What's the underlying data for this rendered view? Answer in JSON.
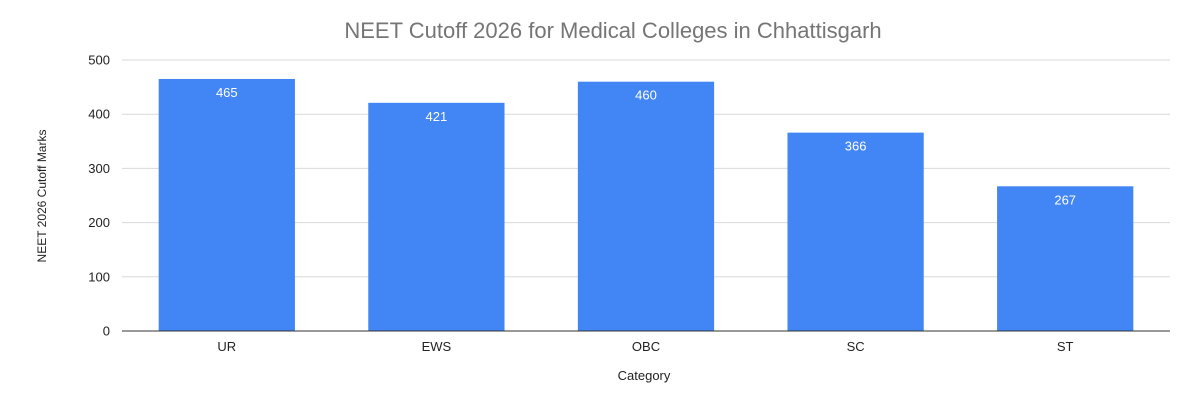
{
  "chart_data": {
    "type": "bar",
    "title": "NEET Cutoff 2026 for Medical Colleges in Chhattisgarh",
    "xlabel": "Category",
    "ylabel": "NEET 2026 Cutoff Marks",
    "categories": [
      "UR",
      "EWS",
      "OBC",
      "SC",
      "ST"
    ],
    "values": [
      465,
      421,
      460,
      366,
      267
    ],
    "data_labels": [
      "465",
      "421",
      "460",
      "366",
      "267"
    ],
    "yticks": [
      0,
      100,
      200,
      300,
      400,
      500
    ],
    "ytick_labels": [
      "0",
      "100",
      "200",
      "300",
      "400",
      "500"
    ],
    "ylim": [
      0,
      500
    ],
    "grid": true,
    "legend": "none",
    "bar_color": "#4285f4",
    "gridline_color": "#d9d9d9"
  }
}
